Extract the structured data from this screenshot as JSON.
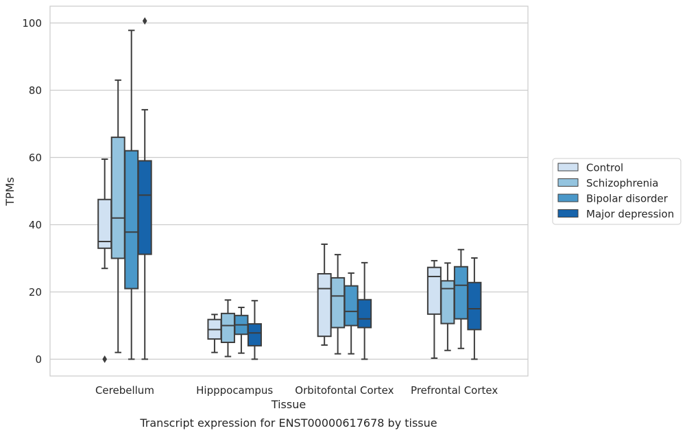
{
  "chart_data": {
    "type": "boxplot",
    "title": "",
    "caption": "Transcript expression for ENST00000617678 by tissue",
    "xlabel": "Tissue",
    "ylabel": "TPMs",
    "ylim": [
      -5,
      105
    ],
    "yticks": [
      0,
      20,
      40,
      60,
      80,
      100
    ],
    "grid": "horizontal",
    "legend_position": "right",
    "categories": [
      "Cerebellum",
      "Hipppocampus",
      "Orbitofontal Cortex",
      "Prefrontal Cortex"
    ],
    "series": [
      {
        "name": "Control",
        "color": "#d0e1f2",
        "boxes": [
          {
            "whislo": 27,
            "q1": 33,
            "med": 35,
            "q3": 47.5,
            "whishi": 59.5,
            "fliers": [
              0
            ]
          },
          {
            "whislo": 2,
            "q1": 6,
            "med": 8.8,
            "q3": 11.8,
            "whishi": 13.3,
            "fliers": []
          },
          {
            "whislo": 4.2,
            "q1": 6.8,
            "med": 21,
            "q3": 25.4,
            "whishi": 34.2,
            "fliers": []
          },
          {
            "whislo": 0.3,
            "q1": 13.4,
            "med": 24.6,
            "q3": 27.3,
            "whishi": 29.3,
            "fliers": []
          }
        ]
      },
      {
        "name": "Schizophrenia",
        "color": "#94c4df",
        "boxes": [
          {
            "whislo": 2,
            "q1": 30,
            "med": 42,
            "q3": 66,
            "whishi": 83,
            "fliers": []
          },
          {
            "whislo": 0.8,
            "q1": 5,
            "med": 10,
            "q3": 13.6,
            "whishi": 17.6,
            "fliers": []
          },
          {
            "whislo": 1.6,
            "q1": 9.4,
            "med": 18.8,
            "q3": 24.2,
            "whishi": 31.1,
            "fliers": []
          },
          {
            "whislo": 2.6,
            "q1": 10.6,
            "med": 21,
            "q3": 23.3,
            "whishi": 28.6,
            "fliers": []
          }
        ]
      },
      {
        "name": "Bipolar disorder",
        "color": "#4a98c9",
        "boxes": [
          {
            "whislo": 0,
            "q1": 21,
            "med": 37.8,
            "q3": 62,
            "whishi": 97.8,
            "fliers": []
          },
          {
            "whislo": 1.8,
            "q1": 7.4,
            "med": 10.2,
            "q3": 13,
            "whishi": 15.4,
            "fliers": []
          },
          {
            "whislo": 1.6,
            "q1": 10,
            "med": 14.2,
            "q3": 21.8,
            "whishi": 25.6,
            "fliers": []
          },
          {
            "whislo": 3.2,
            "q1": 12,
            "med": 22,
            "q3": 27.5,
            "whishi": 32.6,
            "fliers": []
          }
        ]
      },
      {
        "name": "Major depression",
        "color": "#1764ab",
        "boxes": [
          {
            "whislo": 0,
            "q1": 31.2,
            "med": 48.8,
            "q3": 59,
            "whishi": 74.2,
            "fliers": [
              100.6
            ]
          },
          {
            "whislo": 0,
            "q1": 4,
            "med": 7.8,
            "q3": 10.5,
            "whishi": 17.4,
            "fliers": []
          },
          {
            "whislo": 0,
            "q1": 9.4,
            "med": 12,
            "q3": 17.7,
            "whishi": 28.7,
            "fliers": []
          },
          {
            "whislo": 0,
            "q1": 8.8,
            "med": 15,
            "q3": 22.8,
            "whishi": 30.1,
            "fliers": []
          }
        ]
      }
    ]
  }
}
